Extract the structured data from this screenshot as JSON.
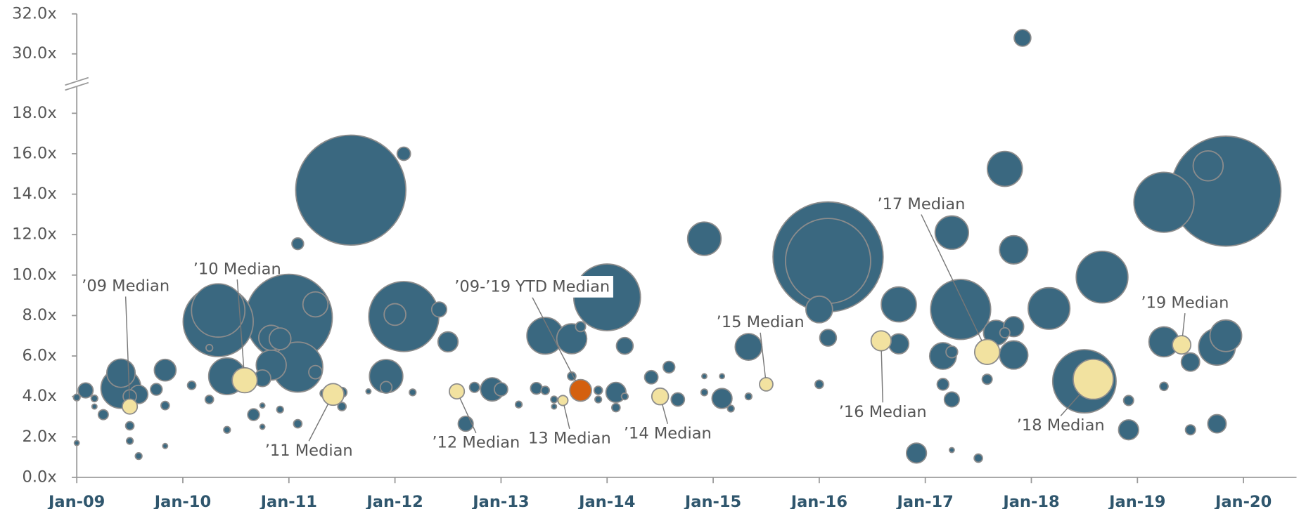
{
  "chart_data": {
    "type": "scatter",
    "x_format": "month",
    "ylim": [
      0,
      32
    ],
    "ybreak": [
      19,
      29
    ],
    "yticks": [
      {
        "value": 0,
        "label": "0.0x"
      },
      {
        "value": 2,
        "label": "2.0x"
      },
      {
        "value": 4,
        "label": "4.0x"
      },
      {
        "value": 6,
        "label": "6.0x"
      },
      {
        "value": 8,
        "label": "8.0x"
      },
      {
        "value": 10,
        "label": "10.0x"
      },
      {
        "value": 12,
        "label": "12.0x"
      },
      {
        "value": 14,
        "label": "14.0x"
      },
      {
        "value": 16,
        "label": "16.0x"
      },
      {
        "value": 18,
        "label": "18.0x"
      },
      {
        "value": 30,
        "label": "30.0x"
      },
      {
        "value": 32,
        "label": "32.0x"
      }
    ],
    "xlim": [
      "2009-01",
      "2020-07"
    ],
    "xticks": [
      {
        "value": "2009-01",
        "label": "Jan-09"
      },
      {
        "value": "2010-01",
        "label": "Jan-10"
      },
      {
        "value": "2011-01",
        "label": "Jan-11"
      },
      {
        "value": "2012-01",
        "label": "Jan-12"
      },
      {
        "value": "2013-01",
        "label": "Jan-13"
      },
      {
        "value": "2014-01",
        "label": "Jan-14"
      },
      {
        "value": "2015-01",
        "label": "Jan-15"
      },
      {
        "value": "2016-01",
        "label": "Jan-16"
      },
      {
        "value": "2017-01",
        "label": "Jan-17"
      },
      {
        "value": "2018-01",
        "label": "Jan-18"
      },
      {
        "value": "2019-01",
        "label": "Jan-19"
      },
      {
        "value": "2020-01",
        "label": "Jan-20"
      }
    ],
    "series": [
      {
        "color": "#3a6880",
        "x": [
          "2009-02",
          "2009-01",
          "2009-01",
          "2009-03",
          "2009-03",
          "2009-04",
          "2009-06",
          "2009-06",
          "2009-07",
          "2009-07",
          "2009-07",
          "2009-08",
          "2009-08",
          "2009-10",
          "2009-11",
          "2009-11",
          "2009-11",
          "2010-02",
          "2010-05",
          "2010-05",
          "2010-04",
          "2010-04",
          "2010-06",
          "2010-06",
          "2010-09",
          "2010-10",
          "2011-01",
          "2010-11",
          "2010-11",
          "2010-12",
          "2011-02",
          "2011-04",
          "2011-04",
          "2010-10",
          "2010-10",
          "2010-12",
          "2011-02",
          "2011-05",
          "2011-02",
          "2011-07",
          "2011-07",
          "2011-08",
          "2011-10",
          "2012-02",
          "2012-02",
          "2012-01",
          "2011-12",
          "2011-12",
          "2012-03",
          "2012-06",
          "2012-07",
          "2012-09",
          "2012-10",
          "2012-12",
          "2013-01",
          "2013-03",
          "2013-05",
          "2013-06",
          "2013-06",
          "2013-09",
          "2013-10",
          "2014-01",
          "2013-09",
          "2013-07",
          "2013-07",
          "2013-12",
          "2013-12",
          "2014-02",
          "2014-02",
          "2014-03",
          "2014-03",
          "2014-06",
          "2014-08",
          "2014-09",
          "2014-12",
          "2014-12",
          "2014-12",
          "2015-02",
          "2015-02",
          "2015-03",
          "2015-05",
          "2015-05",
          "2016-02",
          "2016-02",
          "2016-01",
          "2016-01",
          "2016-02",
          "2016-10",
          "2016-10",
          "2016-12",
          "2017-03",
          "2017-04",
          "2017-04",
          "2017-05",
          "2017-03",
          "2017-04",
          "2017-04",
          "2017-07",
          "2017-08",
          "2017-09",
          "2017-10",
          "2017-10",
          "2017-11",
          "2017-11",
          "2017-11",
          "2017-12",
          "2018-03",
          "2018-07",
          "2018-09",
          "2018-12",
          "2018-12",
          "2019-04",
          "2019-11",
          "2019-09",
          "2019-04",
          "2019-04",
          "2019-07",
          "2019-07",
          "2019-10",
          "2019-10",
          "2019-11"
        ],
        "values": [
          4.3,
          3.95,
          1.7,
          3.9,
          3.5,
          3.1,
          5.15,
          4.4,
          4.0,
          2.55,
          1.8,
          1.05,
          4.1,
          4.35,
          5.3,
          3.55,
          1.55,
          4.55,
          7.7,
          8.25,
          6.4,
          3.85,
          2.35,
          5.0,
          3.1,
          4.9,
          7.9,
          5.55,
          6.9,
          6.85,
          5.45,
          8.55,
          5.2,
          3.55,
          2.5,
          3.35,
          11.55,
          4.15,
          2.65,
          4.2,
          3.5,
          14.2,
          4.25,
          16.0,
          7.95,
          8.05,
          5.0,
          4.45,
          4.2,
          8.3,
          6.7,
          2.65,
          4.45,
          4.35,
          4.35,
          3.6,
          4.4,
          4.3,
          7.0,
          6.85,
          7.45,
          8.9,
          5.0,
          3.85,
          3.5,
          4.3,
          3.85,
          4.2,
          3.45,
          6.5,
          4.0,
          4.95,
          5.45,
          3.85,
          11.8,
          5.0,
          4.2,
          5.0,
          3.9,
          3.4,
          6.45,
          4.0,
          10.9,
          10.7,
          8.3,
          4.6,
          6.9,
          8.55,
          6.6,
          1.2,
          6.0,
          6.2,
          12.1,
          8.3,
          4.6,
          3.85,
          1.35,
          0.95,
          4.85,
          7.15,
          7.15,
          15.25,
          7.45,
          11.25,
          6.05,
          30.8,
          8.35,
          4.75,
          9.9,
          3.8,
          2.35,
          13.6,
          14.15,
          15.4,
          6.7,
          4.5,
          5.7,
          2.35,
          2.65,
          6.45,
          7.0
        ],
        "sizes": [
          81,
          16,
          9,
          16,
          9,
          36,
          289,
          576,
          64,
          25,
          16,
          16,
          121,
          49,
          169,
          25,
          9,
          25,
          1764,
          1024,
          16,
          25,
          16,
          484,
          49,
          100,
          2704,
          324,
          225,
          169,
          900,
          225,
          64,
          9,
          9,
          16,
          49,
          25,
          25,
          36,
          25,
          4356,
          9,
          64,
          1764,
          169,
          400,
          49,
          16,
          81,
          144,
          81,
          36,
          196,
          64,
          16,
          49,
          25,
          484,
          324,
          36,
          1600,
          25,
          16,
          9,
          25,
          16,
          144,
          25,
          100,
          16,
          64,
          49,
          64,
          400,
          9,
          16,
          9,
          144,
          16,
          256,
          16,
          4356,
          2601,
          256,
          25,
          100,
          441,
          144,
          144,
          256,
          49,
          400,
          1296,
          49,
          81,
          9,
          25,
          36,
          225,
          36,
          441,
          144,
          289,
          289,
          100,
          625,
          1444,
          961,
          36,
          144,
          1296,
          4356,
          324,
          324,
          25,
          121,
          36,
          121,
          484,
          361
        ]
      },
      {
        "color": "#f2e2a0",
        "x": [
          "2009-07",
          "2010-08",
          "2011-06",
          "2012-08",
          "2013-08",
          "2014-07",
          "2015-07",
          "2016-08",
          "2017-08",
          "2018-08",
          "2019-06"
        ],
        "values": [
          3.5,
          4.8,
          4.1,
          4.25,
          3.8,
          4.0,
          4.6,
          6.75,
          6.2,
          4.85,
          6.55
        ],
        "sizes": [
          81,
          225,
          169,
          81,
          36,
          100,
          64,
          144,
          225,
          576,
          121
        ],
        "labels": [
          "’09 Median",
          "’10 Median",
          "’11 Median",
          "’12 Median",
          "13 Median",
          "’14 Median",
          "’15 Median",
          "’16 Median",
          "’17 Median",
          "’18 Median",
          "’19 Median"
        ]
      },
      {
        "color": "#d4600f",
        "x": [
          "2013-10"
        ],
        "values": [
          4.3
        ],
        "sizes": [
          169
        ],
        "labels": [
          "’09-’19 YTD Median"
        ]
      }
    ]
  }
}
